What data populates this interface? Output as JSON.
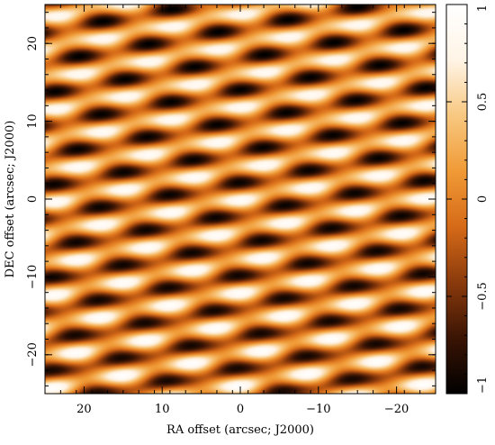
{
  "chart_data": {
    "type": "heatmap",
    "title": "",
    "xlabel": "RA offset (arcsec; J2000)",
    "ylabel": "DEC offset (arcsec; J2000)",
    "xlim": [
      25,
      -25
    ],
    "ylim": [
      -25,
      25
    ],
    "x_ticks": [
      20,
      10,
      0,
      -10,
      -20
    ],
    "y_ticks": [
      -20,
      -10,
      0,
      10,
      20
    ],
    "x_tick_labels": [
      "20",
      "10",
      "0",
      "−10",
      "−20"
    ],
    "y_tick_labels": [
      "−20",
      "−10",
      "0",
      "10",
      "20"
    ],
    "colorbar": {
      "range": [
        -1,
        1
      ],
      "ticks": [
        -1,
        -0.5,
        0,
        0.5,
        1
      ],
      "tick_labels": [
        "−1",
        "−0.5",
        "0",
        "0.5",
        "1"
      ],
      "colors": [
        "#000000",
        "#3a1404",
        "#8a3a0c",
        "#d66a18",
        "#f09a36",
        "#f8c880",
        "#fff4e6",
        "#ffffff"
      ]
    },
    "pattern": "interference fringe pattern of elongated elliptical maxima and minima, tilted slightly, values between -1 and 1",
    "grid": false
  }
}
